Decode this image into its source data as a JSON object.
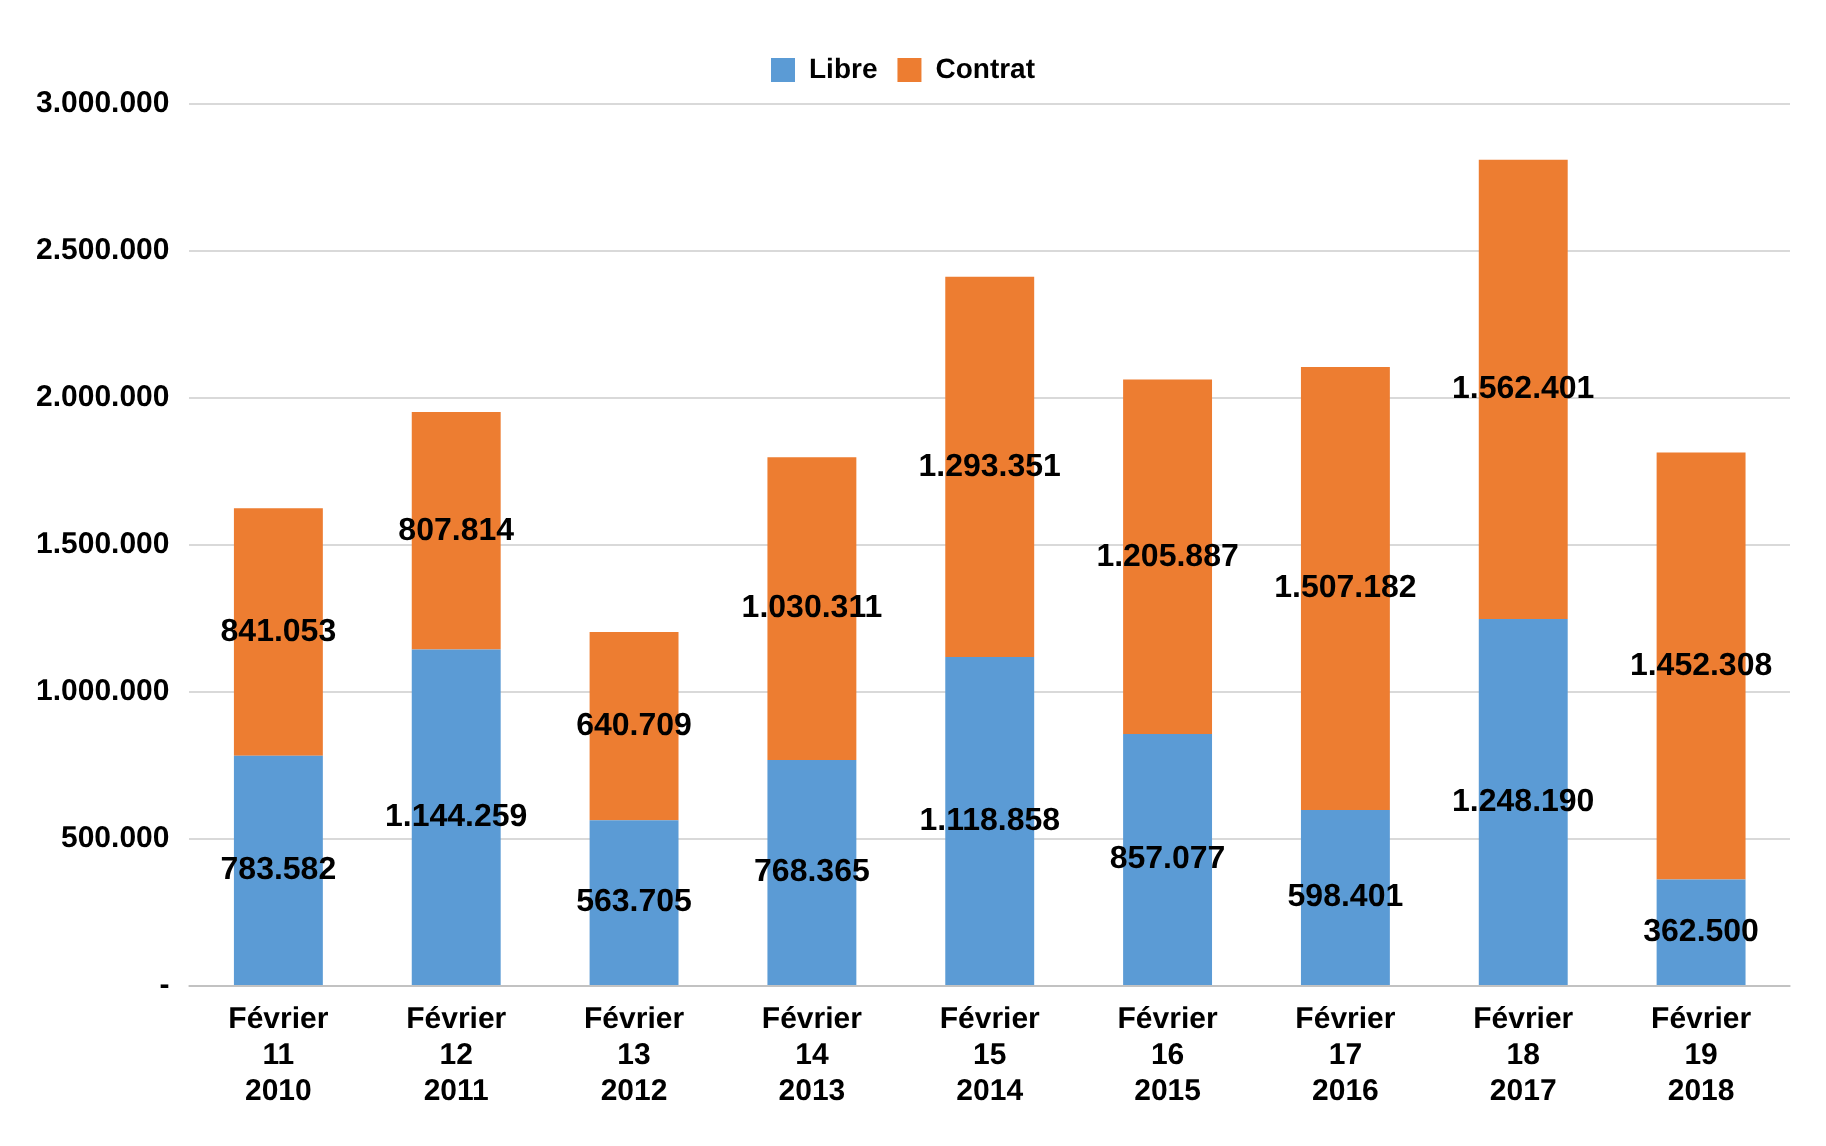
{
  "chart_data": {
    "type": "bar",
    "stacked": true,
    "categories": [
      "Février\n11\n2010",
      "Février\n12\n2011",
      "Février\n13\n2012",
      "Février\n14\n2013",
      "Février\n15\n2014",
      "Février\n16\n2015",
      "Février\n17\n2016",
      "Février\n18\n2017",
      "Février\n19\n2018"
    ],
    "series": [
      {
        "name": "Libre",
        "color": "#5b9bd5",
        "values": [
          783582,
          1144259,
          563705,
          768365,
          1118858,
          857077,
          598401,
          1248190,
          362500
        ],
        "value_labels": [
          "783.582",
          "1.144.259",
          "563.705",
          "768.365",
          "1.118.858",
          "857.077",
          "598.401",
          "1.248.190",
          "362.500"
        ]
      },
      {
        "name": "Contrat",
        "color": "#ed7d31",
        "values": [
          841053,
          807814,
          640709,
          1030311,
          1293351,
          1205887,
          1507182,
          1562401,
          1452308
        ],
        "value_labels": [
          "841.053",
          "807.814",
          "640.709",
          "1.030.311",
          "1.293.351",
          "1.205.887",
          "1.507.182",
          "1.562.401",
          "1.452.308"
        ]
      }
    ],
    "ylim": [
      0,
      3000000
    ],
    "yticks": [
      {
        "value": 0,
        "label": "-"
      },
      {
        "value": 500000,
        "label": "500.000"
      },
      {
        "value": 1000000,
        "label": "1.000.000"
      },
      {
        "value": 1500000,
        "label": "1.500.000"
      },
      {
        "value": 2000000,
        "label": "2.000.000"
      },
      {
        "value": 2500000,
        "label": "2.500.000"
      },
      {
        "value": 3000000,
        "label": "3.000.000"
      }
    ],
    "grid": "y",
    "legend": "top"
  }
}
